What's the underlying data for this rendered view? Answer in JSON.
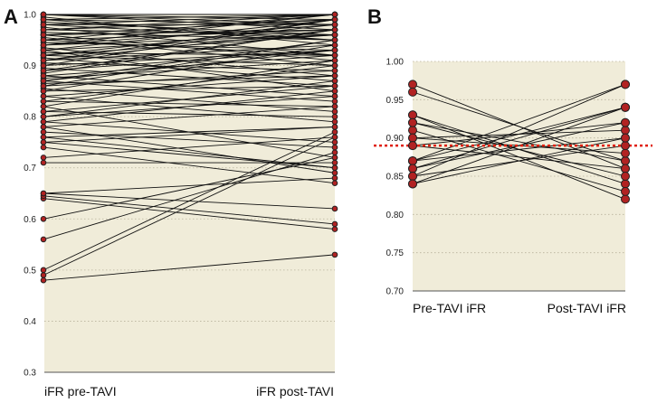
{
  "chart_data": [
    {
      "type": "line",
      "panel": "A",
      "title": "",
      "xlabel": "",
      "ylabel": "",
      "categories": [
        "iFR pre-TAVI",
        "iFR post-TAVI"
      ],
      "ylim": [
        0.3,
        1.0
      ],
      "yticks": [
        "0.3",
        "0.4",
        "0.5",
        "0.6",
        "0.7",
        "0.8",
        "0.9",
        "1.0"
      ],
      "grid": "horizontal dotted",
      "background": "#f0ecd9",
      "marker_color": "#b22222",
      "pairs": [
        [
          0.48,
          0.53
        ],
        [
          0.49,
          0.76
        ],
        [
          0.5,
          0.77
        ],
        [
          0.56,
          0.73
        ],
        [
          0.6,
          0.72
        ],
        [
          0.64,
          0.58
        ],
        [
          0.645,
          0.59
        ],
        [
          0.65,
          0.68
        ],
        [
          0.65,
          0.62
        ],
        [
          0.71,
          0.71
        ],
        [
          0.72,
          0.76
        ],
        [
          0.74,
          0.67
        ],
        [
          0.75,
          0.7
        ],
        [
          0.76,
          0.78
        ],
        [
          0.77,
          0.74
        ],
        [
          0.78,
          0.69
        ],
        [
          0.79,
          0.85
        ],
        [
          0.8,
          0.87
        ],
        [
          0.81,
          0.8
        ],
        [
          0.82,
          0.72
        ],
        [
          0.83,
          0.9
        ],
        [
          0.84,
          0.79
        ],
        [
          0.85,
          0.86
        ],
        [
          0.855,
          0.81
        ],
        [
          0.86,
          0.95
        ],
        [
          0.865,
          0.88
        ],
        [
          0.87,
          0.83
        ],
        [
          0.875,
          0.91
        ],
        [
          0.88,
          0.84
        ],
        [
          0.885,
          0.97
        ],
        [
          0.89,
          0.93
        ],
        [
          0.895,
          0.86
        ],
        [
          0.9,
          0.99
        ],
        [
          0.905,
          0.89
        ],
        [
          0.91,
          0.94
        ],
        [
          0.915,
          0.87
        ],
        [
          0.92,
          0.98
        ],
        [
          0.925,
          0.92
        ],
        [
          0.93,
          0.96
        ],
        [
          0.935,
          0.88
        ],
        [
          0.94,
          1.0
        ],
        [
          0.945,
          0.93
        ],
        [
          0.95,
          0.97
        ],
        [
          0.955,
          0.9
        ],
        [
          0.96,
          0.99
        ],
        [
          0.965,
          0.95
        ],
        [
          0.97,
          1.0
        ],
        [
          0.975,
          0.92
        ],
        [
          0.98,
          0.98
        ],
        [
          0.985,
          0.96
        ],
        [
          0.99,
          1.0
        ],
        [
          0.995,
          0.94
        ],
        [
          1.0,
          0.99
        ],
        [
          1.0,
          0.97
        ],
        [
          1.0,
          1.0
        ],
        [
          0.99,
          0.98
        ],
        [
          0.98,
          0.95
        ],
        [
          0.97,
          0.99
        ],
        [
          0.96,
          0.91
        ],
        [
          0.95,
          1.0
        ],
        [
          0.94,
          0.98
        ],
        [
          0.93,
          0.85
        ],
        [
          0.92,
          0.96
        ],
        [
          0.91,
          0.99
        ],
        [
          0.9,
          0.93
        ],
        [
          0.89,
          0.97
        ],
        [
          0.88,
          0.92
        ],
        [
          0.87,
          0.95
        ],
        [
          0.86,
          0.89
        ],
        [
          0.85,
          0.94
        ],
        [
          0.84,
          0.88
        ],
        [
          0.83,
          0.82
        ],
        [
          0.82,
          0.91
        ],
        [
          0.81,
          0.86
        ],
        [
          0.8,
          0.84
        ],
        [
          0.79,
          0.75
        ],
        [
          0.78,
          0.82
        ],
        [
          0.76,
          0.7
        ],
        [
          0.75,
          0.78
        ],
        [
          0.92,
          0.9
        ],
        [
          0.96,
          0.97
        ],
        [
          0.97,
          0.96
        ],
        [
          0.98,
          1.0
        ],
        [
          0.99,
          0.95
        ],
        [
          1.0,
          0.98
        ],
        [
          0.95,
          0.92
        ],
        [
          0.93,
          0.99
        ],
        [
          0.94,
          0.96
        ],
        [
          0.91,
          0.97
        ],
        [
          0.87,
          0.93
        ]
      ]
    },
    {
      "type": "line",
      "panel": "B",
      "title": "",
      "xlabel": "",
      "ylabel": "",
      "categories": [
        "Pre-TAVI iFR",
        "Post-TAVI iFR"
      ],
      "ylim": [
        0.7,
        1.0
      ],
      "yticks": [
        "0.70",
        "0.75",
        "0.80",
        "0.85",
        "0.90",
        "0.95",
        "1.00"
      ],
      "grid": "horizontal dotted",
      "background": "#f0ecd9",
      "marker_color": "#b22222",
      "reference_line": {
        "y": 0.89,
        "color": "#e02010",
        "style": "dotted"
      },
      "pairs": [
        [
          0.97,
          0.86
        ],
        [
          0.96,
          0.87
        ],
        [
          0.93,
          0.84
        ],
        [
          0.93,
          0.82
        ],
        [
          0.92,
          0.87
        ],
        [
          0.91,
          0.83
        ],
        [
          0.9,
          0.91
        ],
        [
          0.9,
          0.88
        ],
        [
          0.89,
          0.86
        ],
        [
          0.87,
          0.97
        ],
        [
          0.87,
          0.94
        ],
        [
          0.87,
          0.9
        ],
        [
          0.86,
          0.92
        ],
        [
          0.86,
          0.94
        ],
        [
          0.85,
          0.97
        ],
        [
          0.85,
          0.89
        ],
        [
          0.84,
          0.9
        ],
        [
          0.84,
          0.94
        ],
        [
          0.89,
          0.92
        ],
        [
          0.92,
          0.85
        ]
      ]
    }
  ]
}
